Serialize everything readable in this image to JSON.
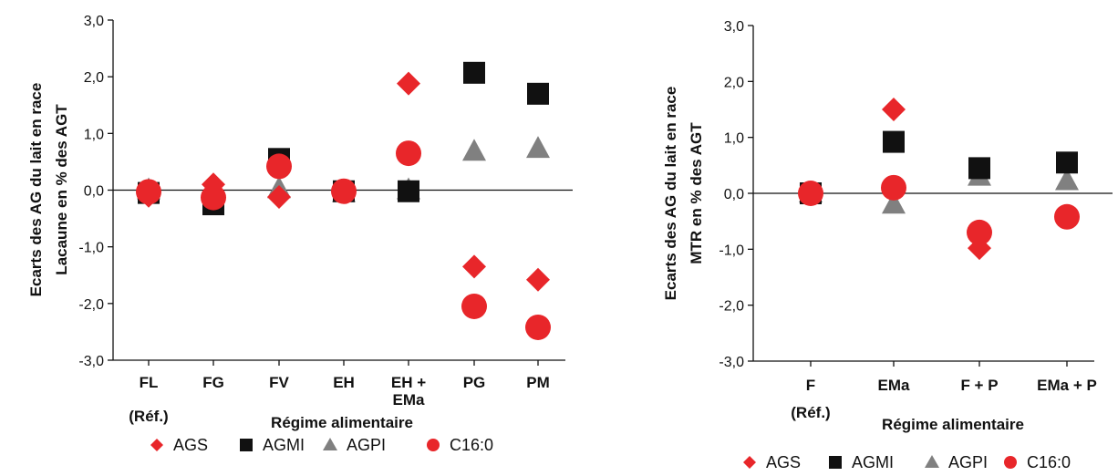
{
  "chart_data": [
    {
      "type": "scatter",
      "ylabel": [
        "Ecarts des AG du lait en race",
        "Lacaune en % des AGT"
      ],
      "xlabel": "Régime alimentaire",
      "ylim": [
        -3.0,
        3.0
      ],
      "yticks": [
        "3,0",
        "2,0",
        "1,0",
        "0,0",
        "-1,0",
        "-2,0",
        "-3,0"
      ],
      "categories": [
        [
          "FL"
        ],
        [
          "FG"
        ],
        [
          "FV"
        ],
        [
          "EH"
        ],
        [
          "EH +",
          "EMa"
        ],
        [
          "PG"
        ],
        [
          "PM"
        ]
      ],
      "ref_label": "(Réf.)",
      "series": [
        {
          "name": "AGS",
          "marker": "diamond",
          "color": "#e8262a",
          "values": [
            -0.1,
            0.1,
            -0.12,
            -0.02,
            1.88,
            -1.35,
            -1.58
          ]
        },
        {
          "name": "AGMI",
          "marker": "square",
          "color": "#111111",
          "values": [
            -0.05,
            -0.25,
            0.55,
            -0.02,
            -0.02,
            2.07,
            1.7
          ]
        },
        {
          "name": "AGPI",
          "marker": "triangle",
          "color": "#808080",
          "values": [
            0.0,
            -0.05,
            0.02,
            -0.05,
            0.0,
            0.68,
            0.73
          ]
        },
        {
          "name": "C16:0",
          "marker": "circle",
          "color": "#e8262a",
          "values": [
            -0.03,
            -0.13,
            0.42,
            -0.02,
            0.65,
            -2.05,
            -2.42
          ]
        }
      ]
    },
    {
      "type": "scatter",
      "ylabel": [
        "Ecarts des AG du lait en race",
        "MTR en % des AGT"
      ],
      "xlabel": "Régime alimentaire",
      "ylim": [
        -3.0,
        3.0
      ],
      "yticks": [
        "3,0",
        "2,0",
        "1,0",
        "0,0",
        "-1,0",
        "-2,0",
        "-3,0"
      ],
      "categories": [
        [
          "F"
        ],
        [
          "EMa"
        ],
        [
          "F + P"
        ],
        [
          "EMa + P"
        ]
      ],
      "ref_label": "(Réf.)",
      "series": [
        {
          "name": "AGS",
          "marker": "diamond",
          "color": "#e8262a",
          "values": [
            0.0,
            1.5,
            -0.98,
            -0.42
          ]
        },
        {
          "name": "AGMI",
          "marker": "square",
          "color": "#111111",
          "values": [
            0.0,
            0.92,
            0.45,
            0.55
          ]
        },
        {
          "name": "AGPI",
          "marker": "triangle",
          "color": "#808080",
          "values": [
            0.0,
            -0.2,
            0.3,
            0.22
          ]
        },
        {
          "name": "C16:0",
          "marker": "circle",
          "color": "#e8262a",
          "values": [
            0.0,
            0.1,
            -0.7,
            -0.42
          ]
        }
      ]
    }
  ]
}
